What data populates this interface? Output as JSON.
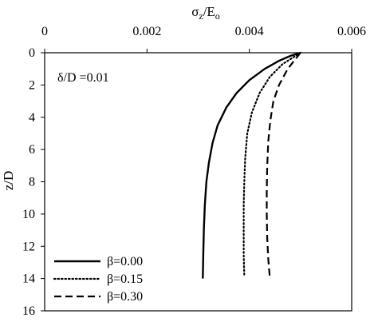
{
  "chart_data": {
    "type": "line",
    "title": "",
    "xlabel": {
      "main": "σ",
      "sub_z": "z",
      "mid": "/E",
      "sub_o": "o"
    },
    "ylabel": "z/D",
    "xlim": [
      0,
      0.006
    ],
    "ylim": [
      0,
      16
    ],
    "y_inverted": true,
    "x_axis_position": "top",
    "xticks": [
      "0",
      "0.002",
      "0.004",
      "0.006"
    ],
    "xtick_values": [
      0,
      0.002,
      0.004,
      0.006
    ],
    "yticks": [
      "0",
      "2",
      "4",
      "6",
      "8",
      "10",
      "12",
      "14",
      "16"
    ],
    "ytick_values": [
      0,
      2,
      4,
      6,
      8,
      10,
      12,
      14,
      16
    ],
    "grid": false,
    "annotation": "δ/D =0.01",
    "legend_position": "bottom-left",
    "series": [
      {
        "name": "β=0.00",
        "style": "solid",
        "x": [
          0.005,
          0.0048,
          0.00458,
          0.0043,
          0.004,
          0.00375,
          0.00355,
          0.00338,
          0.00328,
          0.00321,
          0.00316,
          0.00313,
          0.00311,
          0.0031,
          0.00309
        ],
        "y": [
          0,
          0.2,
          0.5,
          1.0,
          1.7,
          2.5,
          3.4,
          4.5,
          5.6,
          6.8,
          8.0,
          9.5,
          11.0,
          12.5,
          14.0
        ]
      },
      {
        "name": "β=0.15",
        "style": "dotted",
        "x": [
          0.005,
          0.00485,
          0.00465,
          0.0044,
          0.0042,
          0.00405,
          0.00396,
          0.00392,
          0.0039,
          0.00389,
          0.00389,
          0.00389,
          0.0039
        ],
        "y": [
          0,
          0.3,
          0.7,
          1.5,
          2.5,
          3.7,
          5.0,
          6.5,
          8.0,
          9.5,
          11.0,
          12.5,
          13.8
        ]
      },
      {
        "name": "β=0.30",
        "style": "dashed",
        "x": [
          0.005,
          0.0049,
          0.00475,
          0.00458,
          0.00447,
          0.00441,
          0.00437,
          0.00435,
          0.00434,
          0.00434,
          0.00435,
          0.00437,
          0.0044
        ],
        "y": [
          0,
          0.4,
          1.0,
          2.0,
          3.0,
          4.2,
          5.5,
          7.0,
          8.5,
          10.0,
          11.5,
          12.8,
          13.9
        ]
      }
    ]
  }
}
